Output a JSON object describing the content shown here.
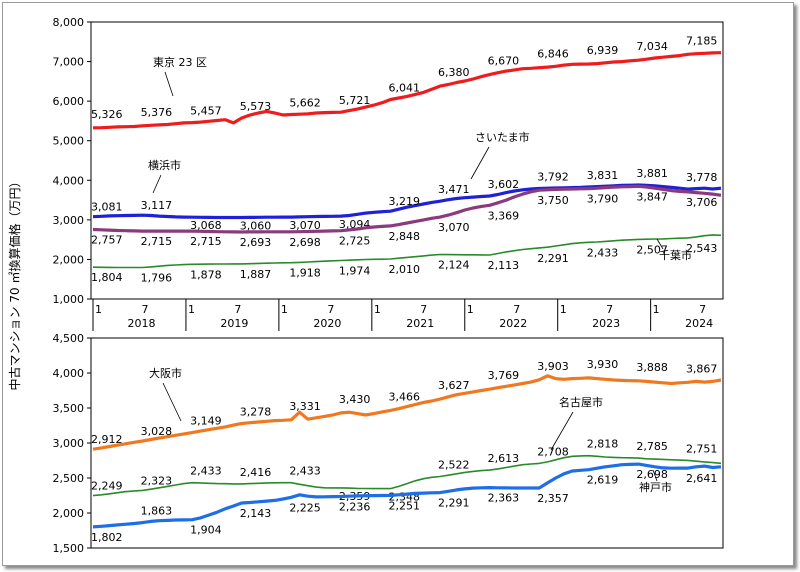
{
  "y_axis_label": "中古マンション 70 ㎡換算価格（万円）",
  "chart_data": [
    {
      "type": "line",
      "ylim": [
        1000,
        8000
      ],
      "y_ticks": [
        "1,000",
        "2,000",
        "3,000",
        "4,000",
        "5,000",
        "6,000",
        "7,000",
        "8,000"
      ],
      "x_month_ticks": [
        "1",
        "7",
        "1",
        "7",
        "1",
        "7",
        "1",
        "7",
        "1",
        "7",
        "1",
        "7",
        "1",
        "7"
      ],
      "x_year_labels": [
        "2018",
        "2019",
        "2020",
        "2021",
        "2022",
        "2023",
        "2024"
      ],
      "series": [
        {
          "name": "東京 23 区",
          "color": "#ee1c1c",
          "values": [
            5326,
            5330,
            5340,
            5350,
            5355,
            5360,
            5376,
            5390,
            5400,
            5410,
            5430,
            5450,
            5457,
            5470,
            5490,
            5510,
            5530,
            5450,
            5573,
            5650,
            5700,
            5740,
            5700,
            5650,
            5662,
            5670,
            5680,
            5700,
            5710,
            5715,
            5721,
            5760,
            5800,
            5850,
            5900,
            5960,
            6041,
            6080,
            6120,
            6170,
            6220,
            6300,
            6380,
            6420,
            6470,
            6510,
            6560,
            6620,
            6670,
            6720,
            6760,
            6790,
            6820,
            6830,
            6846,
            6860,
            6880,
            6910,
            6930,
            6935,
            6939,
            6950,
            6970,
            6990,
            7000,
            7020,
            7034,
            7060,
            7090,
            7110,
            7130,
            7150,
            7185,
            7200,
            7210,
            7220,
            7225
          ],
          "labels": [
            [
              0,
              "5,326"
            ],
            [
              6,
              "5,376"
            ],
            [
              12,
              "5,457"
            ],
            [
              18,
              "5,573"
            ],
            [
              24,
              "5,662"
            ],
            [
              30,
              "5,721"
            ],
            [
              36,
              "6,041"
            ],
            [
              42,
              "6,380"
            ],
            [
              48,
              "6,670"
            ],
            [
              54,
              "6,846"
            ],
            [
              60,
              "6,939"
            ],
            [
              66,
              "7,034"
            ],
            [
              72,
              "7,185"
            ]
          ]
        },
        {
          "name": "横浜市",
          "color": "#2020d8",
          "values": [
            3081,
            3090,
            3100,
            3105,
            3110,
            3112,
            3117,
            3110,
            3095,
            3085,
            3075,
            3070,
            3068,
            3065,
            3062,
            3060,
            3060,
            3060,
            3060,
            3062,
            3065,
            3067,
            3068,
            3069,
            3070,
            3075,
            3080,
            3085,
            3088,
            3090,
            3094,
            3110,
            3140,
            3170,
            3190,
            3205,
            3219,
            3270,
            3320,
            3360,
            3400,
            3440,
            3471,
            3510,
            3540,
            3560,
            3575,
            3590,
            3602,
            3640,
            3690,
            3730,
            3760,
            3780,
            3792,
            3800,
            3805,
            3810,
            3815,
            3820,
            3831,
            3840,
            3850,
            3860,
            3870,
            3875,
            3881,
            3870,
            3860,
            3840,
            3820,
            3800,
            3778,
            3790,
            3800,
            3780,
            3800
          ],
          "labels": [
            [
              0,
              "3,081"
            ],
            [
              6,
              "3,117"
            ],
            [
              12,
              "3,068"
            ],
            [
              18,
              "3,060"
            ],
            [
              24,
              "3,070"
            ],
            [
              30,
              "3,094"
            ],
            [
              36,
              "3,219"
            ],
            [
              42,
              "3,471"
            ],
            [
              48,
              "3,602"
            ],
            [
              54,
              "3,792"
            ],
            [
              60,
              "3,831"
            ],
            [
              66,
              "3,881"
            ],
            [
              72,
              "3,778"
            ]
          ]
        },
        {
          "name": "さいたま市",
          "color": "#8b3a7e",
          "values": [
            2757,
            2750,
            2740,
            2730,
            2725,
            2720,
            2715,
            2715,
            2715,
            2715,
            2715,
            2715,
            2715,
            2710,
            2705,
            2700,
            2698,
            2695,
            2693,
            2695,
            2696,
            2697,
            2698,
            2698,
            2698,
            2700,
            2705,
            2710,
            2715,
            2720,
            2725,
            2745,
            2770,
            2800,
            2820,
            2835,
            2848,
            2880,
            2920,
            2960,
            3000,
            3040,
            3070,
            3120,
            3180,
            3250,
            3300,
            3340,
            3369,
            3430,
            3500,
            3580,
            3650,
            3710,
            3750,
            3760,
            3770,
            3775,
            3780,
            3785,
            3790,
            3800,
            3815,
            3825,
            3835,
            3840,
            3847,
            3830,
            3800,
            3770,
            3740,
            3720,
            3706,
            3690,
            3670,
            3650,
            3620
          ],
          "labels": [
            [
              0,
              "2,757"
            ],
            [
              6,
              "2,715"
            ],
            [
              12,
              "2,715"
            ],
            [
              18,
              "2,693"
            ],
            [
              24,
              "2,698"
            ],
            [
              30,
              "2,725"
            ],
            [
              36,
              "2,848"
            ],
            [
              42,
              "3,070"
            ],
            [
              48,
              "3,369"
            ],
            [
              54,
              "3,750"
            ],
            [
              60,
              "3,790"
            ],
            [
              66,
              "3,847"
            ],
            [
              72,
              "3,706"
            ]
          ]
        },
        {
          "name": "千葉市",
          "color": "#2a8a2a",
          "values": [
            1804,
            1800,
            1798,
            1797,
            1797,
            1796,
            1796,
            1810,
            1830,
            1850,
            1860,
            1870,
            1878,
            1880,
            1882,
            1884,
            1885,
            1886,
            1887,
            1893,
            1900,
            1905,
            1910,
            1914,
            1918,
            1925,
            1935,
            1945,
            1955,
            1965,
            1974,
            1980,
            1990,
            1998,
            2003,
            2007,
            2010,
            2030,
            2050,
            2070,
            2090,
            2110,
            2124,
            2122,
            2120,
            2118,
            2116,
            2114,
            2113,
            2150,
            2190,
            2220,
            2250,
            2270,
            2291,
            2310,
            2340,
            2370,
            2400,
            2420,
            2433,
            2440,
            2455,
            2470,
            2485,
            2495,
            2507,
            2510,
            2515,
            2520,
            2530,
            2537,
            2543,
            2570,
            2600,
            2620,
            2610
          ],
          "labels": [
            [
              0,
              "1,804"
            ],
            [
              6,
              "1,796"
            ],
            [
              12,
              "1,878"
            ],
            [
              18,
              "1,887"
            ],
            [
              24,
              "1,918"
            ],
            [
              30,
              "1,974"
            ],
            [
              36,
              "2,010"
            ],
            [
              42,
              "2,124"
            ],
            [
              48,
              "2,113"
            ],
            [
              54,
              "2,291"
            ],
            [
              60,
              "2,433"
            ],
            [
              66,
              "2,507"
            ],
            [
              72,
              "2,543"
            ]
          ]
        }
      ]
    },
    {
      "type": "line",
      "ylim": [
        1500,
        4500
      ],
      "y_ticks": [
        "1,500",
        "2,000",
        "2,500",
        "3,000",
        "3,500",
        "4,000",
        "4,500"
      ],
      "series": [
        {
          "name": "大阪市",
          "color": "#f07820",
          "values": [
            2912,
            2930,
            2950,
            2970,
            2990,
            3010,
            3028,
            3050,
            3070,
            3090,
            3110,
            3130,
            3149,
            3170,
            3190,
            3210,
            3230,
            3255,
            3278,
            3290,
            3300,
            3310,
            3320,
            3325,
            3331,
            3440,
            3340,
            3360,
            3380,
            3400,
            3430,
            3440,
            3420,
            3400,
            3420,
            3445,
            3466,
            3490,
            3520,
            3550,
            3580,
            3600,
            3627,
            3660,
            3690,
            3710,
            3730,
            3750,
            3769,
            3790,
            3810,
            3830,
            3850,
            3870,
            3903,
            3960,
            3920,
            3910,
            3920,
            3925,
            3930,
            3920,
            3910,
            3900,
            3895,
            3890,
            3888,
            3880,
            3870,
            3860,
            3850,
            3860,
            3867,
            3880,
            3870,
            3880,
            3900
          ],
          "labels": [
            [
              0,
              "2,912"
            ],
            [
              6,
              "3,028"
            ],
            [
              12,
              "3,149"
            ],
            [
              18,
              "3,278"
            ],
            [
              24,
              "3,331"
            ],
            [
              30,
              "3,430"
            ],
            [
              36,
              "3,466"
            ],
            [
              42,
              "3,627"
            ],
            [
              48,
              "3,769"
            ],
            [
              54,
              "3,903"
            ],
            [
              60,
              "3,930"
            ],
            [
              66,
              "3,888"
            ],
            [
              72,
              "3,867"
            ]
          ]
        },
        {
          "name": "名古屋市",
          "color": "#2a8a2a",
          "values": [
            2249,
            2260,
            2275,
            2290,
            2305,
            2315,
            2323,
            2340,
            2360,
            2380,
            2400,
            2420,
            2433,
            2430,
            2425,
            2420,
            2418,
            2416,
            2416,
            2420,
            2425,
            2430,
            2432,
            2433,
            2433,
            2410,
            2390,
            2370,
            2360,
            2358,
            2359,
            2355,
            2352,
            2350,
            2349,
            2348,
            2348,
            2380,
            2420,
            2460,
            2490,
            2510,
            2522,
            2540,
            2560,
            2580,
            2595,
            2605,
            2613,
            2630,
            2650,
            2670,
            2690,
            2700,
            2708,
            2730,
            2760,
            2790,
            2810,
            2815,
            2818,
            2810,
            2800,
            2795,
            2790,
            2788,
            2785,
            2775,
            2770,
            2765,
            2760,
            2755,
            2751,
            2740,
            2730,
            2720,
            2710
          ],
          "labels": [
            [
              0,
              "2,249"
            ],
            [
              6,
              "2,323"
            ],
            [
              12,
              "2,433"
            ],
            [
              18,
              "2,416"
            ],
            [
              24,
              "2,433"
            ],
            [
              30,
              "2,359"
            ],
            [
              36,
              "2,348"
            ],
            [
              42,
              "2,522"
            ],
            [
              48,
              "2,613"
            ],
            [
              54,
              "2,708"
            ],
            [
              60,
              "2,818"
            ],
            [
              66,
              "2,785"
            ],
            [
              72,
              "2,751"
            ]
          ]
        },
        {
          "name": "神戸市",
          "color": "#1e6ee8",
          "values": [
            1802,
            1810,
            1820,
            1830,
            1840,
            1850,
            1863,
            1880,
            1890,
            1895,
            1900,
            1902,
            1904,
            1930,
            1970,
            2010,
            2060,
            2100,
            2143,
            2150,
            2160,
            2170,
            2180,
            2200,
            2225,
            2260,
            2240,
            2230,
            2232,
            2234,
            2236,
            2240,
            2244,
            2247,
            2249,
            2250,
            2251,
            2260,
            2270,
            2280,
            2285,
            2288,
            2291,
            2310,
            2330,
            2345,
            2355,
            2360,
            2363,
            2360,
            2358,
            2357,
            2357,
            2357,
            2357,
            2430,
            2500,
            2560,
            2600,
            2610,
            2619,
            2640,
            2660,
            2675,
            2690,
            2695,
            2698,
            2680,
            2660,
            2645,
            2640,
            2641,
            2641,
            2660,
            2670,
            2650,
            2660
          ],
          "labels": [
            [
              0,
              "1,802"
            ],
            [
              6,
              "1,863"
            ],
            [
              12,
              "1,904"
            ],
            [
              18,
              "2,143"
            ],
            [
              24,
              "2,225"
            ],
            [
              30,
              "2,236"
            ],
            [
              36,
              "2,251"
            ],
            [
              42,
              "2,291"
            ],
            [
              48,
              "2,363"
            ],
            [
              54,
              "2,357"
            ],
            [
              60,
              "2,619"
            ],
            [
              66,
              "2,698"
            ],
            [
              72,
              "2,641"
            ]
          ]
        }
      ]
    }
  ]
}
